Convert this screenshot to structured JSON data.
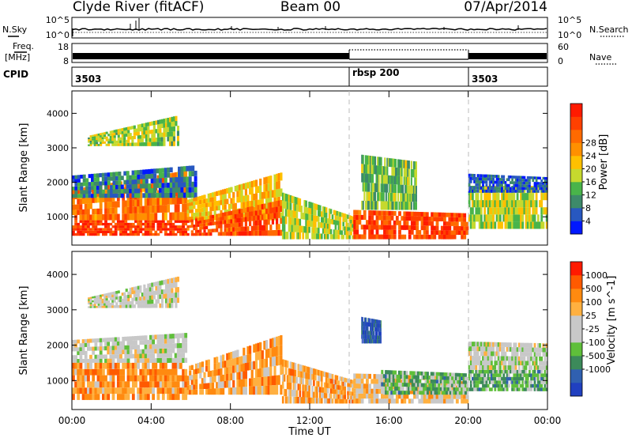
{
  "header": {
    "station": "Clyde River (fitACF)",
    "beam": "Beam 00",
    "date": "07/Apr/2014"
  },
  "noise_panel": {
    "left_label": "N.Sky",
    "right_label": "N.Search",
    "left_ticks": [
      "10^5",
      "10^0"
    ],
    "right_ticks": [
      "10^5",
      "10^0"
    ]
  },
  "freq_panel": {
    "left_label": "Freq.",
    "left_unit": "[MHz]",
    "right_label": "Nave",
    "left_ticks": [
      "18",
      "8"
    ],
    "right_ticks": [
      "60",
      "0"
    ]
  },
  "cpid_panel": {
    "label": "CPID",
    "segments": [
      {
        "label": "3503",
        "start_h": 0,
        "end_h": 14
      },
      {
        "label": "rbsp 200",
        "start_h": 14,
        "end_h": 20
      },
      {
        "label": "3503",
        "start_h": 20,
        "end_h": 24
      }
    ]
  },
  "time_axis": {
    "label": "Time UT",
    "ticks": [
      "00:00",
      "04:00",
      "08:00",
      "12:00",
      "16:00",
      "20:00",
      "00:00"
    ]
  },
  "chart_data": [
    {
      "type": "heatmap",
      "name": "power",
      "ylabel": "Slant Range [km]",
      "yticks": [
        1000,
        2000,
        3000,
        4000
      ],
      "ylim": [
        180,
        4650
      ],
      "xlim": [
        0,
        24
      ],
      "colorbar": {
        "label": "Power [dB]",
        "ticks": [
          "4",
          "8",
          "12",
          "16",
          "20",
          "24",
          "28"
        ],
        "colors": [
          "#0018ff",
          "#2858c0",
          "#3d8a6a",
          "#49b44a",
          "#c6d92e",
          "#ffc000",
          "#ff9000",
          "#ff6a00",
          "#ff4000",
          "#ff1a00"
        ]
      },
      "bands": [
        {
          "t0": 0.0,
          "t1": 5.8,
          "r0": 900,
          "r1": 1800,
          "r1_end": 2350,
          "scale": "power",
          "level": 0.75
        },
        {
          "t0": 0.0,
          "t1": 5.8,
          "r0": 450,
          "r1": 900,
          "r1_end": 900,
          "scale": "power",
          "level": 0.92
        },
        {
          "t0": 0.0,
          "t1": 6.3,
          "r0": 1550,
          "r1": 2200,
          "r1_end": 2500,
          "scale": "power",
          "level": 0.18
        },
        {
          "t0": 5.8,
          "t1": 10.6,
          "r0": 900,
          "r1": 1500,
          "r1_end": 2300,
          "scale": "power",
          "level": 0.55
        },
        {
          "t0": 5.8,
          "t1": 10.6,
          "r0": 450,
          "r1": 900,
          "r1_end": 1500,
          "scale": "power",
          "level": 0.85
        },
        {
          "t0": 10.6,
          "t1": 14.2,
          "r0": 350,
          "r1": 1700,
          "r1_end": 1000,
          "scale": "power",
          "level": 0.45
        },
        {
          "t0": 14.2,
          "t1": 20.0,
          "r0": 350,
          "r1": 1200,
          "r1_end": 1100,
          "scale": "power",
          "level": 0.88
        },
        {
          "t0": 14.6,
          "t1": 17.4,
          "r0": 1200,
          "r1": 2800,
          "r1_end": 2600,
          "scale": "power",
          "level": 0.35
        },
        {
          "t0": 20.0,
          "t1": 24.0,
          "r0": 650,
          "r1": 1900,
          "r1_end": 1900,
          "scale": "power",
          "level": 0.45
        },
        {
          "t0": 20.0,
          "t1": 24.0,
          "r0": 1700,
          "r1": 2250,
          "r1_end": 2150,
          "scale": "power",
          "level": 0.12
        },
        {
          "t0": 0.8,
          "t1": 5.4,
          "r0": 3050,
          "r1": 3350,
          "r1_end": 3950,
          "scale": "power",
          "level": 0.42
        }
      ]
    },
    {
      "type": "heatmap",
      "name": "velocity",
      "ylabel": "Slant Range [km]",
      "yticks": [
        1000,
        2000,
        3000,
        4000
      ],
      "ylim": [
        180,
        4650
      ],
      "xlim": [
        0,
        24
      ],
      "colorbar": {
        "label": "Velocity [m s^-1]",
        "ticks": [
          "1000",
          "500",
          "100",
          "25",
          "-25",
          "-100",
          "-500",
          "-1000"
        ],
        "colors": [
          "#2040c0",
          "#3060b0",
          "#3c8a5a",
          "#5fbf3a",
          "#c8c8c8",
          "#c8c8c8",
          "#ffb040",
          "#ff8a10",
          "#ff5a00",
          "#ff1a00"
        ]
      },
      "bands": [
        {
          "t0": 0.0,
          "t1": 5.8,
          "r0": 1500,
          "r1": 2150,
          "r1_end": 2350,
          "scale": "velocity",
          "level": 0.5
        },
        {
          "t0": 0.0,
          "t1": 5.8,
          "r0": 450,
          "r1": 1500,
          "r1_end": 1500,
          "scale": "velocity",
          "level": 0.75
        },
        {
          "t0": 5.8,
          "t1": 10.6,
          "r0": 600,
          "r1": 1400,
          "r1_end": 2300,
          "scale": "velocity",
          "level": 0.72
        },
        {
          "t0": 10.6,
          "t1": 14.2,
          "r0": 350,
          "r1": 1600,
          "r1_end": 1000,
          "scale": "velocity",
          "level": 0.7
        },
        {
          "t0": 14.2,
          "t1": 20.0,
          "r0": 350,
          "r1": 1200,
          "r1_end": 1100,
          "scale": "velocity",
          "level": 0.62
        },
        {
          "t0": 14.6,
          "t1": 15.6,
          "r0": 2050,
          "r1": 2800,
          "r1_end": 2700,
          "scale": "velocity",
          "level": 0.06
        },
        {
          "t0": 15.6,
          "t1": 20.0,
          "r0": 600,
          "r1": 1300,
          "r1_end": 1200,
          "scale": "velocity",
          "level": 0.32
        },
        {
          "t0": 20.0,
          "t1": 24.0,
          "r0": 700,
          "r1": 1300,
          "r1_end": 1300,
          "scale": "velocity",
          "level": 0.3
        },
        {
          "t0": 20.0,
          "t1": 24.0,
          "r0": 1300,
          "r1": 2100,
          "r1_end": 2050,
          "scale": "velocity",
          "level": 0.48
        },
        {
          "t0": 0.8,
          "t1": 5.4,
          "r0": 3050,
          "r1": 3350,
          "r1_end": 3950,
          "scale": "velocity",
          "level": 0.5
        }
      ]
    }
  ]
}
